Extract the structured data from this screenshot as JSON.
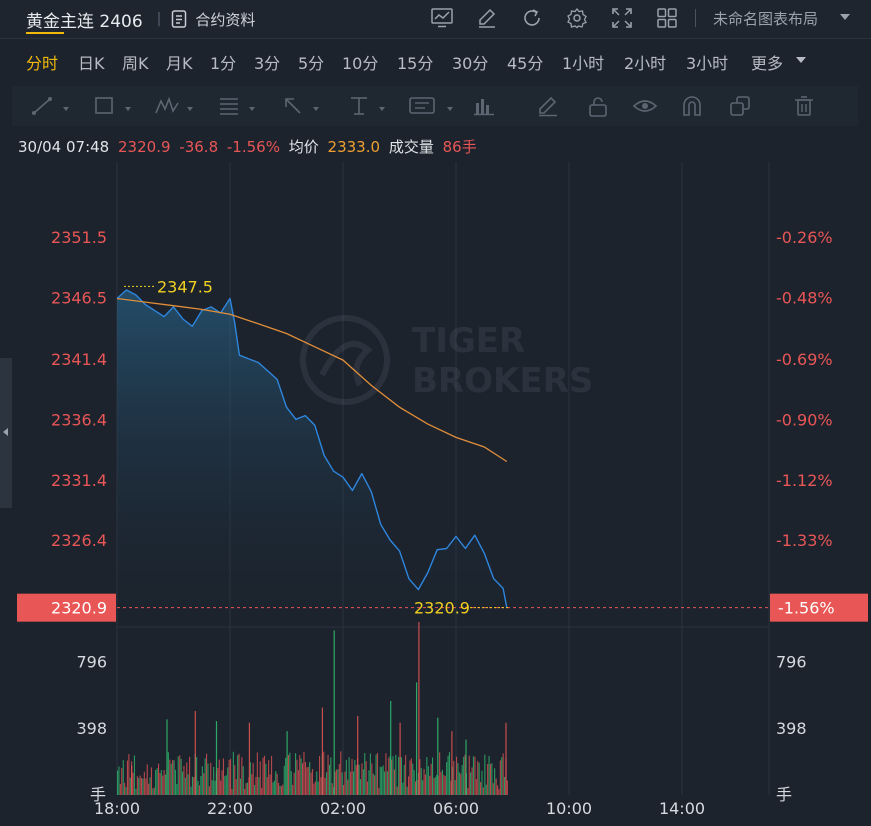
{
  "header": {
    "title": "黄金主连 2406",
    "separator": "|",
    "contract_label": "合约资料",
    "tool_icons": [
      "chart-template-icon",
      "draw-pen-icon",
      "refresh-icon",
      "settings-gear-icon",
      "fullscreen-icon",
      "grid-layout-icon"
    ],
    "layout_name": "未命名图表布局"
  },
  "tabs": [
    "分时",
    "日K",
    "周K",
    "月K",
    "1分",
    "3分",
    "5分",
    "10分",
    "15分",
    "30分",
    "45分",
    "1小时",
    "2小时",
    "3小时",
    "更多"
  ],
  "active_tab": "分时",
  "drawing_tools": [
    "line-tool-icon",
    "rectangle-tool-icon",
    "wave-tool-icon",
    "fib-tool-icon",
    "arrow-tool-icon",
    "text-tool-icon",
    "annotation-tool-icon",
    "measure-tool-icon",
    "brush-icon",
    "lock-icon",
    "eye-icon",
    "magnet-icon",
    "copy-icon",
    "trash-icon"
  ],
  "info": {
    "datetime": "30/04 07:48",
    "price": "2320.9",
    "change": "-36.8",
    "change_pct": "-1.56%",
    "avg_label": "均价",
    "avg_value": "2333.0",
    "volume_label": "成交量",
    "volume_value": "86手"
  },
  "colors": {
    "background": "#1c232d",
    "price_line": "#2e86de",
    "avg_line": "#e08e3a",
    "down": "#e85656",
    "up": "#2fbf71",
    "marker": "#f0d020",
    "accent": "#f0b90b"
  },
  "chart_data": [
    {
      "type": "line",
      "xlabel": "",
      "ylabel": "",
      "x_ticks": [
        "18:00",
        "22:00",
        "02:00",
        "06:00",
        "10:00",
        "14:00"
      ],
      "y_ticks": [
        "2351.5",
        "2346.5",
        "2341.4",
        "2336.4",
        "2331.4",
        "2326.4"
      ],
      "y_right_ticks": [
        "-0.26%",
        "-0.48%",
        "-0.69%",
        "-0.90%",
        "-1.12%",
        "-1.33%"
      ],
      "ylim": [
        2319.3,
        2357.8
      ],
      "last_price_label": "2320.9",
      "last_pct_label": "-1.56%",
      "high_marker": "2347.5",
      "low_marker": "2320.9",
      "watermark": [
        "TIGER",
        "BROKERS"
      ],
      "series": [
        {
          "key": "price",
          "x": [
            "18:00",
            "18:20",
            "18:40",
            "19:00",
            "19:20",
            "19:40",
            "20:00",
            "20:20",
            "20:40",
            "21:00",
            "21:20",
            "21:40",
            "22:00",
            "22:10",
            "22:20",
            "22:40",
            "23:00",
            "23:20",
            "23:40",
            "00:00",
            "00:20",
            "00:40",
            "01:00",
            "01:20",
            "01:40",
            "02:00",
            "02:20",
            "02:40",
            "03:00",
            "03:20",
            "03:40",
            "04:00",
            "04:20",
            "04:40",
            "05:00",
            "05:20",
            "05:40",
            "06:00",
            "06:20",
            "06:40",
            "07:00",
            "07:20",
            "07:40",
            "07:48"
          ],
          "values": [
            2346.5,
            2347.2,
            2346.8,
            2346.0,
            2345.5,
            2345.0,
            2345.8,
            2344.8,
            2344.2,
            2345.5,
            2345.8,
            2345.3,
            2346.5,
            2344.5,
            2341.8,
            2341.5,
            2341.2,
            2340.5,
            2339.8,
            2337.5,
            2336.5,
            2336.8,
            2336.0,
            2333.5,
            2332.2,
            2331.7,
            2330.6,
            2332.0,
            2330.5,
            2327.8,
            2326.5,
            2325.6,
            2323.3,
            2322.4,
            2323.8,
            2325.7,
            2325.8,
            2326.8,
            2325.8,
            2326.9,
            2325.4,
            2323.3,
            2322.5,
            2320.9
          ]
        },
        {
          "key": "average",
          "x": [
            "18:00",
            "19:00",
            "20:00",
            "21:00",
            "22:00",
            "23:00",
            "00:00",
            "01:00",
            "02:00",
            "03:00",
            "04:00",
            "05:00",
            "06:00",
            "07:00",
            "07:48"
          ],
          "values": [
            2346.5,
            2346.2,
            2345.9,
            2345.6,
            2345.2,
            2344.4,
            2343.6,
            2342.5,
            2341.4,
            2339.3,
            2337.5,
            2336.1,
            2335.0,
            2334.2,
            2333.0
          ]
        }
      ]
    },
    {
      "type": "bar",
      "xlabel": "",
      "ylabel": "",
      "y_ticks": [
        "796",
        "398"
      ],
      "unit_label": "手",
      "ylim": [
        0,
        1000
      ],
      "x_start": "18:00",
      "x_end": "07:48",
      "interval_minutes": 3,
      "values": [
        145,
        170,
        66,
        161,
        208,
        72,
        47,
        205,
        243,
        103,
        201,
        132,
        236,
        37,
        112,
        102,
        116,
        101,
        97,
        138,
        98,
        182,
        67,
        105,
        164,
        40,
        44,
        149,
        160,
        187,
        131,
        148,
        116,
        149,
        121,
        151,
        255,
        211,
        186,
        208,
        207,
        150,
        65,
        230,
        236,
        214,
        139,
        174,
        103,
        193,
        123,
        227,
        50,
        109,
        106,
        244,
        226,
        84,
        58,
        113,
        171,
        129,
        218,
        245,
        187,
        52,
        191,
        88,
        167,
        85,
        142,
        161,
        211,
        86,
        147,
        218,
        113,
        117,
        164,
        209,
        215,
        36,
        257,
        178,
        95,
        237,
        245,
        97,
        225,
        171,
        36,
        70,
        74,
        105,
        196,
        124,
        190,
        59,
        108,
        253,
        106,
        200,
        43,
        222,
        234,
        186,
        106,
        207,
        122,
        232,
        75,
        85,
        142,
        126,
        72,
        55,
        53,
        62,
        174,
        222,
        222,
        238,
        252,
        142,
        60,
        132,
        249,
        210,
        148,
        237,
        217,
        189,
        257,
        196,
        164,
        168,
        196,
        134,
        155,
        68,
        80,
        140,
        79,
        233,
        106,
        246,
        258,
        103,
        135,
        238,
        179,
        224,
        70,
        47,
        139,
        151,
        154,
        185,
        260,
        135,
        59,
        140,
        209,
        91,
        225,
        139,
        214,
        140,
        209,
        178,
        219,
        181,
        94,
        188,
        153,
        250,
        201,
        80,
        147,
        247,
        188,
        127,
        117,
        240,
        250,
        43,
        169,
        166,
        176,
        139,
        249,
        141,
        222,
        233,
        210,
        231,
        152,
        239,
        50,
        227,
        222,
        225,
        73,
        180,
        237,
        50,
        111,
        206,
        217,
        187,
        149,
        81,
        89,
        131,
        213,
        161,
        88,
        155,
        122,
        226,
        171,
        114,
        186,
        223,
        101,
        108,
        120,
        114,
        254,
        138,
        150,
        119,
        112,
        196,
        234,
        255,
        85,
        167,
        203,
        89,
        228,
        189,
        135,
        127,
        178,
        227,
        239,
        130,
        41,
        234,
        134,
        164,
        230,
        228,
        94,
        202,
        192,
        76,
        144,
        45,
        240,
        62,
        184,
        233,
        185,
        189,
        70,
        159,
        98,
        57,
        35,
        206,
        225,
        247,
        108,
        217,
        86,
        248,
        67,
        139,
        221,
        226,
        108,
        185,
        127,
        92,
        258,
        218,
        128,
        103,
        41,
        70,
        216,
        231,
        115,
        125,
        147,
        169,
        100,
        114,
        135,
        73,
        231,
        42,
        40,
        71,
        230,
        161,
        111
      ],
      "up": [
        1,
        1,
        0,
        0,
        1,
        0,
        1,
        0,
        0,
        1,
        0,
        0,
        1,
        1,
        0,
        1,
        0,
        0,
        1,
        0,
        0,
        0,
        0,
        1,
        0,
        1,
        0,
        1,
        1,
        0,
        0,
        1,
        0,
        0,
        1,
        0,
        1,
        0,
        1,
        0,
        1,
        1,
        1,
        1,
        0,
        1,
        1,
        0,
        1,
        0,
        1,
        0,
        1,
        1,
        0,
        1,
        1,
        1,
        0,
        1,
        1,
        0,
        1,
        0,
        1,
        0,
        0,
        1,
        1,
        1,
        0,
        0,
        0,
        0,
        0,
        0,
        1,
        1,
        1,
        0,
        0,
        0,
        1,
        0,
        0,
        1,
        0,
        1,
        0,
        1,
        0,
        0,
        1,
        0,
        1,
        0,
        0,
        1,
        0,
        0,
        1,
        0,
        0,
        0,
        0,
        1,
        0,
        0,
        0,
        0,
        1,
        1,
        1,
        0,
        0,
        1,
        0,
        0,
        1,
        1,
        0,
        0,
        1,
        1,
        0,
        0,
        1,
        0,
        0,
        0,
        1,
        0,
        0,
        0,
        0,
        0,
        1,
        0,
        0,
        0,
        0,
        1,
        1,
        0,
        0,
        1,
        0,
        0,
        1,
        0,
        1,
        1,
        0,
        1,
        0,
        0,
        1,
        0,
        0,
        1,
        0,
        0,
        1,
        0,
        1,
        0,
        0,
        1,
        1,
        0,
        0,
        1,
        1,
        0,
        1,
        1,
        0,
        0,
        1,
        1,
        0,
        1,
        0,
        1,
        0,
        0,
        1,
        1,
        1,
        1,
        0,
        1,
        0,
        1,
        0,
        1,
        0,
        1,
        0,
        1,
        0,
        1,
        1,
        1,
        0,
        1,
        0,
        0,
        0,
        1,
        1,
        0,
        0,
        1,
        0,
        1,
        1,
        0,
        0,
        1,
        1,
        0,
        0,
        1,
        0,
        1,
        1,
        0,
        0,
        0,
        1,
        0,
        0,
        1,
        1,
        1,
        0,
        1,
        0,
        1,
        0,
        1,
        1,
        0,
        1,
        1,
        0,
        1,
        0,
        0,
        1,
        0,
        1,
        0,
        0,
        0,
        1,
        0,
        1,
        0,
        1,
        1,
        0,
        1,
        0,
        1,
        0,
        1,
        0,
        0,
        0,
        0,
        1,
        0,
        1,
        0,
        0,
        0,
        1,
        0,
        1,
        0,
        1,
        1,
        1,
        1,
        0,
        0,
        1,
        0,
        0,
        0,
        1,
        1,
        0,
        1,
        0,
        0,
        1,
        0,
        0,
        0,
        0
      ],
      "spikes": [
        {
          "x": "18:30",
          "value": 175
        },
        {
          "x": "19:45",
          "value": 450
        },
        {
          "x": "20:45",
          "value": 500
        },
        {
          "x": "21:30",
          "value": 440
        },
        {
          "x": "22:40",
          "value": 430
        },
        {
          "x": "00:00",
          "value": 380
        },
        {
          "x": "01:15",
          "value": 520
        },
        {
          "x": "01:40",
          "value": 980
        },
        {
          "x": "02:30",
          "value": 470
        },
        {
          "x": "03:40",
          "value": 560
        },
        {
          "x": "04:00",
          "value": 430
        },
        {
          "x": "04:35",
          "value": 670
        },
        {
          "x": "04:40",
          "value": 1030
        },
        {
          "x": "05:20",
          "value": 460
        },
        {
          "x": "05:50",
          "value": 380
        },
        {
          "x": "06:20",
          "value": 330
        },
        {
          "x": "07:45",
          "value": 430
        }
      ]
    }
  ]
}
